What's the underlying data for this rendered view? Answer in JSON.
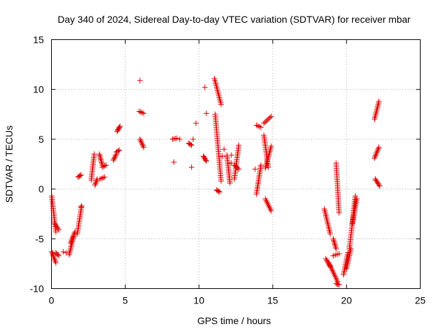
{
  "chart_data": {
    "type": "scatter",
    "title": "Day 340 of 2024, Sidereal Day-to-day VTEC variation (SDTVAR) for receiver mbar",
    "xlabel": "GPS time / hours",
    "ylabel": "SDTVAR / TECUs",
    "xlim": [
      0,
      25
    ],
    "ylim": [
      -10,
      15
    ],
    "xticks": [
      0,
      5,
      10,
      15,
      20,
      25
    ],
    "yticks": [
      -10,
      -5,
      0,
      5,
      10,
      15
    ],
    "xtick_labels": [
      "0",
      "5",
      "10",
      "15",
      "20",
      "25"
    ],
    "ytick_labels": [
      "-10",
      "-5",
      "0",
      "5",
      "10",
      "15"
    ],
    "grid": true,
    "marker": "+",
    "color": "#e00000",
    "segments": [
      [
        0.02,
        0.3,
        -0.7,
        -4.3
      ],
      [
        0.02,
        0.3,
        -6.3,
        -7.4
      ],
      [
        0.2,
        0.5,
        -3.4,
        -4.1
      ],
      [
        0.3,
        0.5,
        -6.4,
        -6.7
      ],
      [
        1.2,
        1.5,
        -6.6,
        -4.8
      ],
      [
        1.3,
        1.6,
        -5.4,
        -4.3
      ],
      [
        1.75,
        2.05,
        -4.5,
        -1.7
      ],
      [
        1.8,
        2.0,
        1.2,
        1.4
      ],
      [
        2.7,
        2.9,
        0.9,
        3.5
      ],
      [
        2.95,
        3.1,
        0.4,
        1.0
      ],
      [
        3.25,
        3.45,
        3.5,
        2.4
      ],
      [
        3.3,
        3.6,
        1.0,
        1.2
      ],
      [
        3.45,
        3.7,
        2.2,
        2.4
      ],
      [
        4.2,
        4.4,
        2.9,
        3.5
      ],
      [
        4.4,
        4.6,
        3.7,
        3.9
      ],
      [
        4.45,
        4.65,
        5.8,
        6.3
      ],
      [
        5.95,
        6.25,
        7.8,
        7.6
      ],
      [
        6.0,
        6.25,
        5.0,
        4.2
      ],
      [
        8.2,
        8.5,
        5.0,
        5.1
      ],
      [
        9.3,
        9.5,
        4.6,
        4.4
      ],
      [
        10.3,
        10.5,
        3.3,
        2.8
      ],
      [
        11.05,
        11.5,
        11.1,
        8.5
      ],
      [
        11.1,
        11.5,
        7.5,
        0.8
      ],
      [
        11.2,
        11.4,
        -0.1,
        -0.3
      ],
      [
        11.9,
        12.1,
        3.4,
        0.6
      ],
      [
        12.4,
        12.7,
        1.0,
        4.4
      ],
      [
        12.4,
        12.7,
        2.4,
        2.0
      ],
      [
        13.9,
        14.2,
        6.4,
        6.2
      ],
      [
        13.9,
        14.2,
        -0.5,
        2.4
      ],
      [
        14.4,
        14.7,
        5.4,
        2.2
      ],
      [
        14.4,
        14.9,
        6.6,
        7.3
      ],
      [
        14.5,
        14.9,
        2.1,
        4.3
      ],
      [
        14.5,
        14.9,
        -1.0,
        -2.2
      ],
      [
        18.5,
        18.9,
        -2.0,
        -4.5
      ],
      [
        18.6,
        18.9,
        -7.0,
        -7.8
      ],
      [
        18.8,
        19.4,
        -7.4,
        -9.3
      ],
      [
        19.1,
        19.3,
        -5.0,
        -6.0
      ],
      [
        19.3,
        19.5,
        -9.5,
        -9.6
      ],
      [
        19.3,
        19.5,
        2.6,
        -2.4
      ],
      [
        19.1,
        19.5,
        -6.7,
        -6.5
      ],
      [
        19.8,
        20.1,
        -8.6,
        -6.4
      ],
      [
        20.0,
        20.3,
        -8.0,
        -6.0
      ],
      [
        20.2,
        20.6,
        -6.0,
        -0.7
      ],
      [
        20.4,
        20.7,
        -3.5,
        -1.0
      ],
      [
        21.9,
        22.2,
        7.0,
        8.8
      ],
      [
        21.9,
        22.2,
        3.1,
        4.2
      ],
      [
        21.95,
        22.25,
        1.0,
        0.3
      ]
    ],
    "scatter_points": [
      [
        0.8,
        -6.3
      ],
      [
        1.0,
        -6.4
      ],
      [
        8.3,
        2.7
      ],
      [
        8.7,
        5.0
      ],
      [
        9.5,
        2.2
      ],
      [
        9.6,
        5.0
      ],
      [
        9.8,
        6.6
      ],
      [
        10.4,
        10.2
      ],
      [
        10.5,
        7.6
      ],
      [
        11.6,
        3.3
      ],
      [
        11.7,
        4.0
      ],
      [
        12.2,
        2.6
      ],
      [
        12.2,
        3.4
      ],
      [
        13.8,
        2.0
      ],
      [
        6.0,
        10.9
      ],
      [
        2.0,
        1.4
      ],
      [
        2.0,
        -1.8
      ]
    ]
  }
}
